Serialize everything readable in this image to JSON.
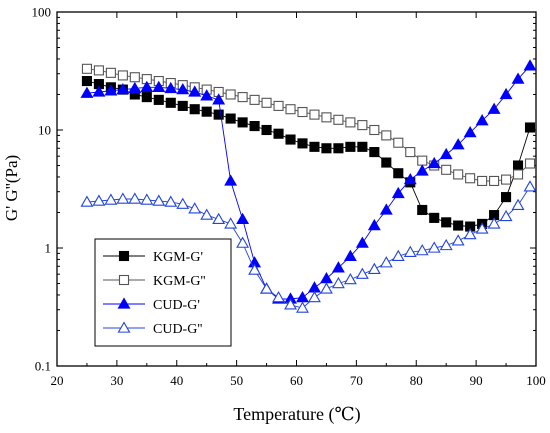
{
  "chart_data": {
    "type": "line",
    "title": "",
    "xlabel": "Temperature (℃)",
    "ylabel": "G' G''(Pa)",
    "xlim": [
      20,
      100
    ],
    "ylim": [
      0.1,
      100
    ],
    "yscale": "log",
    "grid": false,
    "legend_position": "bottom-left",
    "x_ticks": [
      "20",
      "30",
      "40",
      "50",
      "60",
      "70",
      "80",
      "90",
      "100"
    ],
    "y_ticks": [
      "0.1",
      "1",
      "10",
      "100"
    ],
    "series": [
      {
        "name": "KGM-G'",
        "marker": "filled-square",
        "color": "#000000",
        "x": [
          25,
          27,
          29,
          31,
          33,
          35,
          37,
          39,
          41,
          43,
          45,
          47,
          49,
          51,
          53,
          55,
          57,
          59,
          61,
          63,
          65,
          67,
          69,
          71,
          73,
          75,
          77,
          79,
          81,
          83,
          85,
          87,
          89,
          91,
          93,
          95,
          97,
          99
        ],
        "y": [
          26,
          24.5,
          23,
          22,
          20,
          19,
          18,
          17,
          16,
          15,
          14.3,
          13.5,
          12.5,
          11.6,
          10.8,
          10,
          9.3,
          8.3,
          7.7,
          7.2,
          7,
          7,
          7.2,
          7.2,
          6.5,
          5.3,
          4.3,
          3.6,
          2.1,
          1.8,
          1.65,
          1.55,
          1.52,
          1.6,
          1.9,
          2.7,
          5.0,
          10.5
        ]
      },
      {
        "name": "KGM-G''",
        "marker": "open-square",
        "color": "#555555",
        "x": [
          25,
          27,
          29,
          31,
          33,
          35,
          37,
          39,
          41,
          43,
          45,
          47,
          49,
          51,
          53,
          55,
          57,
          59,
          61,
          63,
          65,
          67,
          69,
          71,
          73,
          75,
          77,
          79,
          81,
          83,
          85,
          87,
          89,
          91,
          93,
          95,
          97,
          99
        ],
        "y": [
          33,
          32,
          30.5,
          29,
          28,
          27,
          26,
          25,
          24,
          23,
          22,
          21,
          20,
          19,
          18,
          17,
          16,
          15,
          14.2,
          13.5,
          12.8,
          12.2,
          11.6,
          11,
          10,
          9,
          7.8,
          6.5,
          5.5,
          5,
          4.6,
          4.2,
          3.9,
          3.7,
          3.7,
          3.8,
          4.2,
          5.2
        ]
      },
      {
        "name": "CUD-G'",
        "marker": "filled-triangle",
        "color": "#0000ff",
        "x": [
          25,
          27,
          29,
          31,
          33,
          35,
          37,
          39,
          41,
          43,
          45,
          47,
          49,
          51,
          53,
          55,
          57,
          59,
          61,
          63,
          65,
          67,
          69,
          71,
          73,
          75,
          77,
          79,
          81,
          83,
          85,
          87,
          89,
          91,
          93,
          95,
          97,
          99
        ],
        "y": [
          20.5,
          21,
          21.5,
          22,
          22.5,
          23,
          23,
          22.5,
          22,
          21,
          19.5,
          18,
          3.7,
          1.75,
          0.75,
          0.45,
          0.37,
          0.37,
          0.38,
          0.46,
          0.55,
          0.68,
          0.85,
          1.1,
          1.55,
          2.1,
          2.9,
          3.8,
          4.5,
          5.2,
          6.2,
          7.5,
          9.5,
          12,
          15,
          20,
          27,
          35
        ]
      },
      {
        "name": "CUD-G''",
        "marker": "open-triangle",
        "color": "#2244dd",
        "x": [
          25,
          27,
          29,
          31,
          33,
          35,
          37,
          39,
          41,
          43,
          45,
          47,
          49,
          51,
          53,
          55,
          57,
          59,
          61,
          63,
          65,
          67,
          69,
          71,
          73,
          75,
          77,
          79,
          81,
          83,
          85,
          87,
          89,
          91,
          93,
          95,
          97,
          99
        ],
        "y": [
          2.45,
          2.5,
          2.55,
          2.6,
          2.6,
          2.55,
          2.5,
          2.45,
          2.35,
          2.15,
          1.9,
          1.75,
          1.6,
          1.1,
          0.65,
          0.45,
          0.38,
          0.33,
          0.31,
          0.38,
          0.45,
          0.5,
          0.54,
          0.6,
          0.66,
          0.75,
          0.85,
          0.92,
          0.95,
          1.0,
          1.05,
          1.15,
          1.3,
          1.45,
          1.6,
          1.85,
          2.3,
          3.3
        ]
      }
    ]
  }
}
